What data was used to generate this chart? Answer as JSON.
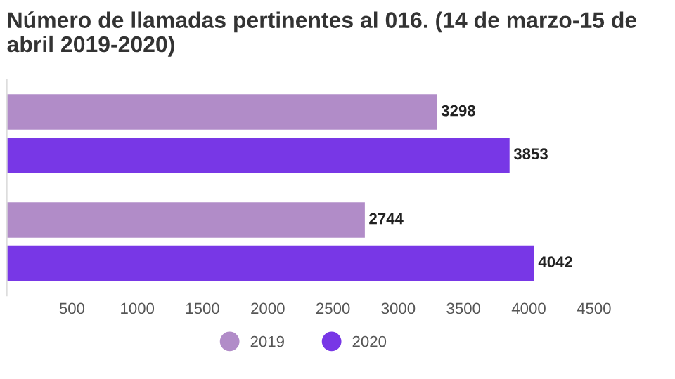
{
  "chart_data": {
    "type": "bar",
    "orientation": "horizontal",
    "title": "Número de llamadas pertinentes al 016. (14 de marzo-15 de abril 2019-2020)",
    "categories": [
      null,
      null
    ],
    "series": [
      {
        "name": "2019",
        "color": "#b18cc8",
        "values": [
          3298,
          2744
        ]
      },
      {
        "name": "2020",
        "color": "#7837e6",
        "values": [
          3853,
          4042
        ]
      }
    ],
    "xlim": [
      0,
      4500
    ],
    "xticks": [
      500,
      1000,
      1500,
      2000,
      2500,
      3000,
      3500,
      4000,
      4500
    ],
    "data_labels": true,
    "grid": false,
    "legend": "bottom"
  }
}
